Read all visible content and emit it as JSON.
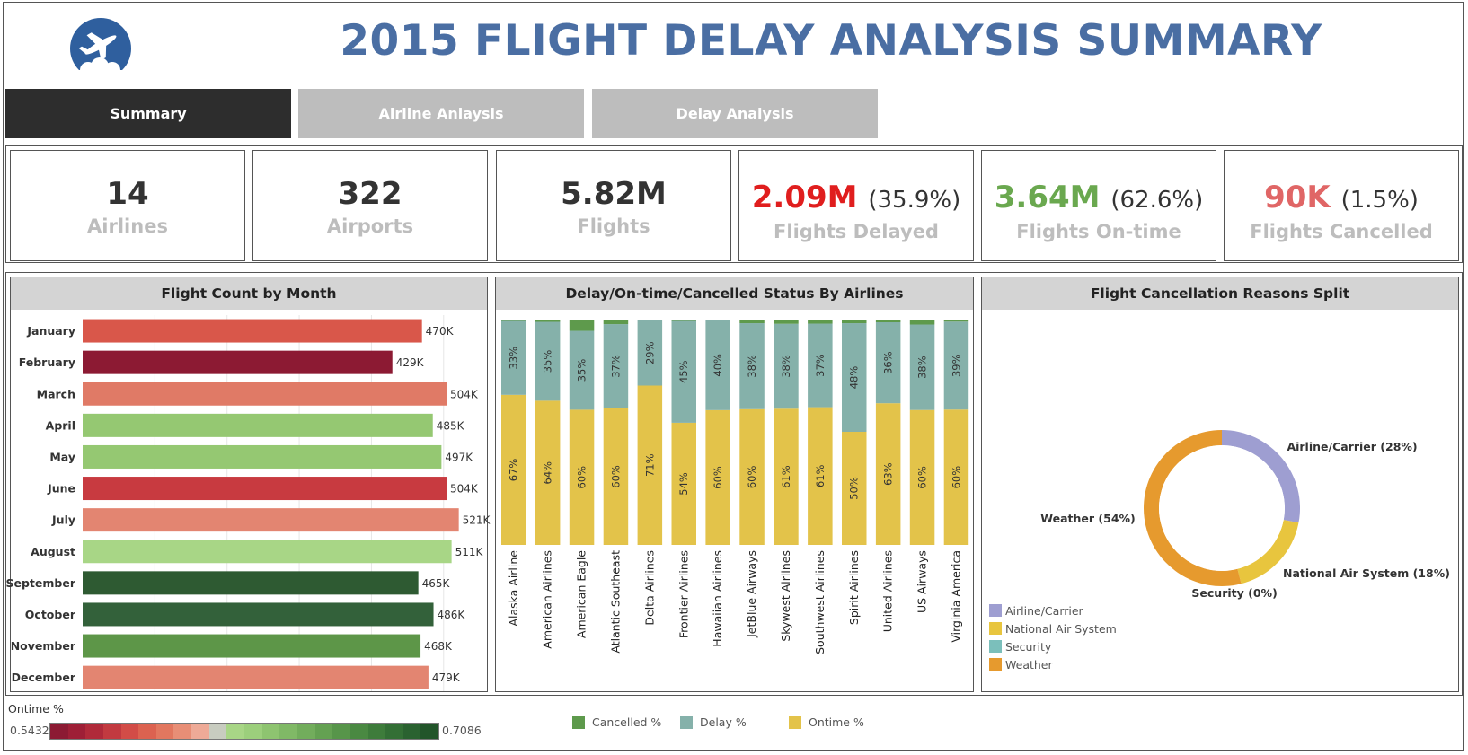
{
  "header": {
    "title": "2015 FLIGHT DELAY ANALYSIS SUMMARY",
    "logo_icon": "airplane-icon"
  },
  "tabs": [
    {
      "label": "Summary",
      "active": true
    },
    {
      "label": "Airline Anlaysis",
      "active": false
    },
    {
      "label": "Delay Analysis",
      "active": false
    }
  ],
  "kpis": {
    "airlines": {
      "value": "14",
      "label": "Airlines"
    },
    "airports": {
      "value": "322",
      "label": "Airports"
    },
    "flights": {
      "value": "5.82M",
      "label": "Flights"
    },
    "delayed": {
      "value": "2.09M",
      "pct": "(35.9%)",
      "label": "Flights Delayed",
      "color": "#e01e1e"
    },
    "ontime": {
      "value": "3.64M",
      "pct": "(62.6%)",
      "label": "Flights On-time",
      "color": "#6aa84f"
    },
    "cancelled": {
      "value": "90K",
      "pct": "(1.5%)",
      "label": "Flights Cancelled",
      "color": "#e06666"
    }
  },
  "chart_data": [
    {
      "type": "bar",
      "title": "Flight Count by Month",
      "orientation": "horizontal",
      "categories": [
        "January",
        "February",
        "March",
        "April",
        "May",
        "June",
        "July",
        "August",
        "September",
        "October",
        "November",
        "December"
      ],
      "values": [
        470000,
        429000,
        504000,
        485000,
        497000,
        504000,
        521000,
        511000,
        465000,
        486000,
        468000,
        479000
      ],
      "value_labels": [
        "470K",
        "429K",
        "504K",
        "485K",
        "497K",
        "504K",
        "521K",
        "511K",
        "465K",
        "486K",
        "468K",
        "479K"
      ],
      "bar_colors": [
        "#d9574a",
        "#8c1a33",
        "#e07a66",
        "#95c872",
        "#95c872",
        "#c83a40",
        "#e38571",
        "#a8d686",
        "#2e5a32",
        "#33613a",
        "#5d9648",
        "#e38571"
      ],
      "xlim": [
        0,
        560000
      ],
      "grid": true
    },
    {
      "type": "bar",
      "stacked": true,
      "title": "Delay/On-time/Cancelled Status By Airlines",
      "categories": [
        "Alaska Airline",
        "American Airlines",
        "American Eagle",
        "Atlantic Southeast",
        "Delta Airlines",
        "Frontier Airlines",
        "Hawaiian Airlines",
        "JetBlue Airways",
        "Skywest Airlines",
        "Southwest Airlines",
        "Spirit Airlines",
        "United Airlines",
        "US Airways",
        "Virginia America"
      ],
      "series": [
        {
          "name": "Ontime %",
          "color": "#e3c34a",
          "values": [
            67,
            64,
            60,
            60,
            71,
            54,
            60,
            60,
            61,
            61,
            50,
            63,
            60,
            60
          ],
          "labels": [
            "67%",
            "64%",
            "60%",
            "60%",
            "71%",
            "54%",
            "60%",
            "60%",
            "61%",
            "61%",
            "50%",
            "63%",
            "60%",
            "60%"
          ]
        },
        {
          "name": "Delay %",
          "color": "#85b1aa",
          "values": [
            33,
            35,
            35,
            37,
            29,
            45,
            40,
            38,
            38,
            37,
            48,
            36,
            38,
            39
          ],
          "labels": [
            "33%",
            "35%",
            "35%",
            "37%",
            "29%",
            "45%",
            "40%",
            "38%",
            "38%",
            "37%",
            "48%",
            "36%",
            "38%",
            "39%"
          ]
        },
        {
          "name": "Cancelled %",
          "color": "#5e9a4c",
          "values": [
            0.6,
            1,
            5,
            2,
            0.4,
            0.6,
            0.3,
            1.6,
            1.9,
            1.8,
            1.6,
            1.2,
            2.2,
            0.9
          ]
        }
      ],
      "ylim": [
        0,
        100
      ]
    },
    {
      "type": "pie",
      "donut": true,
      "title": "Flight Cancellation Reasons Split",
      "categories": [
        "Airline/Carrier",
        "National Air System",
        "Security",
        "Weather"
      ],
      "values": [
        28,
        18,
        0,
        54
      ],
      "labels": [
        "Airline/Carrier (28%)",
        "National Air System (18%)",
        "Security (0%)",
        "Weather (54%)"
      ],
      "colors": [
        "#9e9ed1",
        "#e8c53e",
        "#7bbfbb",
        "#e69a2e"
      ],
      "legend_labels": [
        "Airline/Carrier",
        "National Air System",
        "Security",
        "Weather"
      ],
      "legend": "bottom-left"
    }
  ],
  "legend": {
    "ontime_title": "Ontime %",
    "min": "0.5432",
    "max": "0.7086",
    "ramp_colors": [
      "#8c1a33",
      "#9e1f36",
      "#b02a3a",
      "#c23a40",
      "#d24c47",
      "#dc6250",
      "#e2775f",
      "#e88e76",
      "#eeaa97",
      "#c8ccc0",
      "#a8d686",
      "#9ccf7c",
      "#8ec470",
      "#80b966",
      "#72ad5c",
      "#64a152",
      "#57954a",
      "#4a8942",
      "#3e7c3b",
      "#336f35",
      "#2a6230",
      "#22552a"
    ],
    "status_items": [
      {
        "label": "Cancelled %",
        "color": "#5e9a4c"
      },
      {
        "label": "Delay %",
        "color": "#85b1aa"
      },
      {
        "label": "Ontime %",
        "color": "#e3c34a"
      }
    ]
  }
}
